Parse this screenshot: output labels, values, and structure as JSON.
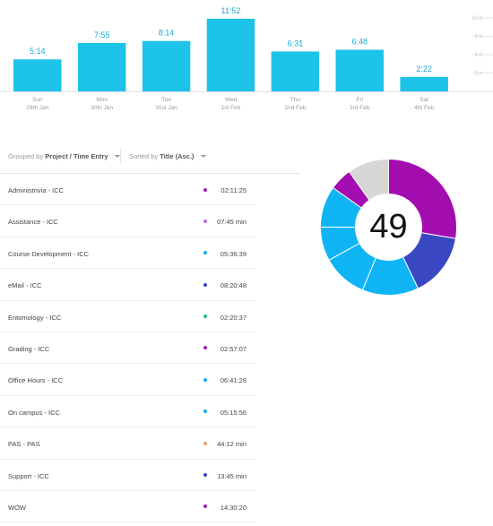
{
  "bar_chart": {
    "y_ticks": [
      "12 h",
      "9 h",
      "6 h",
      "3 h"
    ],
    "y_max_hours": 12,
    "days": [
      {
        "day": "Sun",
        "date": "29th Jan",
        "label": "5:14",
        "hours": 5.233
      },
      {
        "day": "Mon",
        "date": "30th Jan",
        "label": "7:55",
        "hours": 7.917
      },
      {
        "day": "Tue",
        "date": "31st Jan",
        "label": "8:14",
        "hours": 8.233
      },
      {
        "day": "Wed",
        "date": "1st Feb",
        "label": "11:52",
        "hours": 11.867
      },
      {
        "day": "Thu",
        "date": "2nd Feb",
        "label": "6:31",
        "hours": 6.517
      },
      {
        "day": "Fri",
        "date": "3rd Feb",
        "label": "6:48",
        "hours": 6.8
      },
      {
        "day": "Sat",
        "date": "4th Feb",
        "label": "2:22",
        "hours": 2.367
      }
    ],
    "bar_color": "#1ec3ea"
  },
  "toolbar": {
    "group_prefix": "Grouped by",
    "group_value": "Project / Time Entry",
    "sort_prefix": "Sorted by",
    "sort_value": "Title (Asc.)"
  },
  "entries": [
    {
      "title": "Administrivia - ICC",
      "duration": "02:11:25",
      "color": "#a01cb5"
    },
    {
      "title": "Assistance - ICC",
      "duration": "07:45 min",
      "color": "#c26ee3"
    },
    {
      "title": "Course Development - ICC",
      "duration": "05:36:39",
      "color": "#17a9ee"
    },
    {
      "title": "eMail - ICC",
      "duration": "08:20:48",
      "color": "#3543c4"
    },
    {
      "title": "Entomology - ICC",
      "duration": "02:20:37",
      "color": "#1fbf8f"
    },
    {
      "title": "Grading - ICC",
      "duration": "02:57:07",
      "color": "#a01cb5"
    },
    {
      "title": "Office Hours - ICC",
      "duration": "06:41:28",
      "color": "#17a9ee"
    },
    {
      "title": "On campus - ICC",
      "duration": "05:15:56",
      "color": "#17a9ee"
    },
    {
      "title": "PAS - PAS",
      "duration": "44:12 min",
      "color": "#e89a6b"
    },
    {
      "title": "Support - ICC",
      "duration": "13:45 min",
      "color": "#3543c4"
    },
    {
      "title": "WOW",
      "duration": "14:30:20",
      "color": "#a01cb5"
    }
  ],
  "donut": {
    "count": "49",
    "segments": [
      {
        "value": 31,
        "color": "#a30db0"
      },
      {
        "value": 17,
        "color": "#3a47c3"
      },
      {
        "value": 15,
        "color": "#0fb4f5"
      },
      {
        "value": 12,
        "color": "#0fb4f5"
      },
      {
        "value": 9,
        "color": "#0fb4f5"
      },
      {
        "value": 11,
        "color": "#0fb4f5"
      },
      {
        "value": 6,
        "color": "#a30db0"
      },
      {
        "value": 11,
        "color": "#d6d6d6"
      }
    ]
  }
}
